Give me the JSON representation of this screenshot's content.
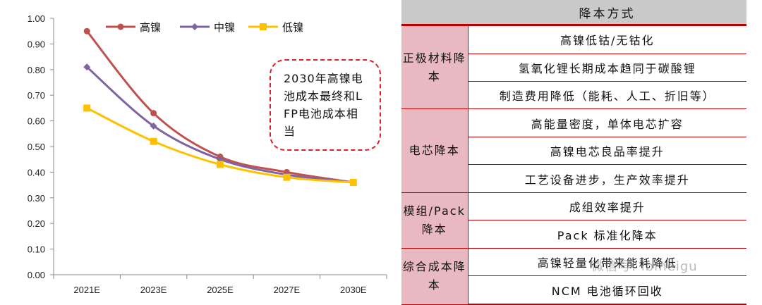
{
  "chart_data": {
    "type": "line",
    "x": [
      "2021E",
      "2023E",
      "2025E",
      "2027E",
      "2030E"
    ],
    "ylim": [
      0,
      1.0
    ],
    "yticks": [
      "0.00",
      "0.10",
      "0.20",
      "0.30",
      "0.40",
      "0.50",
      "0.60",
      "0.70",
      "0.80",
      "0.90",
      "1.00"
    ],
    "series": [
      {
        "name": "高镍",
        "color": "#c0504d",
        "marker": "circle",
        "values": [
          0.95,
          0.63,
          0.46,
          0.4,
          0.36
        ]
      },
      {
        "name": "中镍",
        "color": "#8064a2",
        "marker": "diamond",
        "values": [
          0.81,
          0.58,
          0.45,
          0.39,
          0.36
        ]
      },
      {
        "name": "低镍",
        "color": "#ffc000",
        "marker": "square",
        "values": [
          0.65,
          0.52,
          0.43,
          0.38,
          0.36
        ]
      }
    ],
    "annotation": "2030年高镍电池成本最终和LFP电池成本相当",
    "legend": "top",
    "grid": false
  },
  "table": {
    "header": "降本方式",
    "groups": [
      {
        "category": "正极材料降本",
        "items": [
          "高镍低钴/无钴化",
          "氢氧化锂长期成本趋同于碳酸锂",
          "制造费用降低（能耗、人工、折旧等）"
        ]
      },
      {
        "category": "电芯降本",
        "items": [
          "高能量密度，单体电芯扩容",
          "高镍电芯良品率提升",
          "工艺设备进步，生产效率提升"
        ]
      },
      {
        "category": "模组/Pack降本",
        "items": [
          "成组效率提升",
          "Pack 标准化降本"
        ]
      },
      {
        "category": "综合成本降本",
        "items": [
          "高镍轻量化带来能耗降低",
          "NCM 电池循环回收"
        ]
      }
    ]
  },
  "watermark": "微信号: ibmeigu"
}
